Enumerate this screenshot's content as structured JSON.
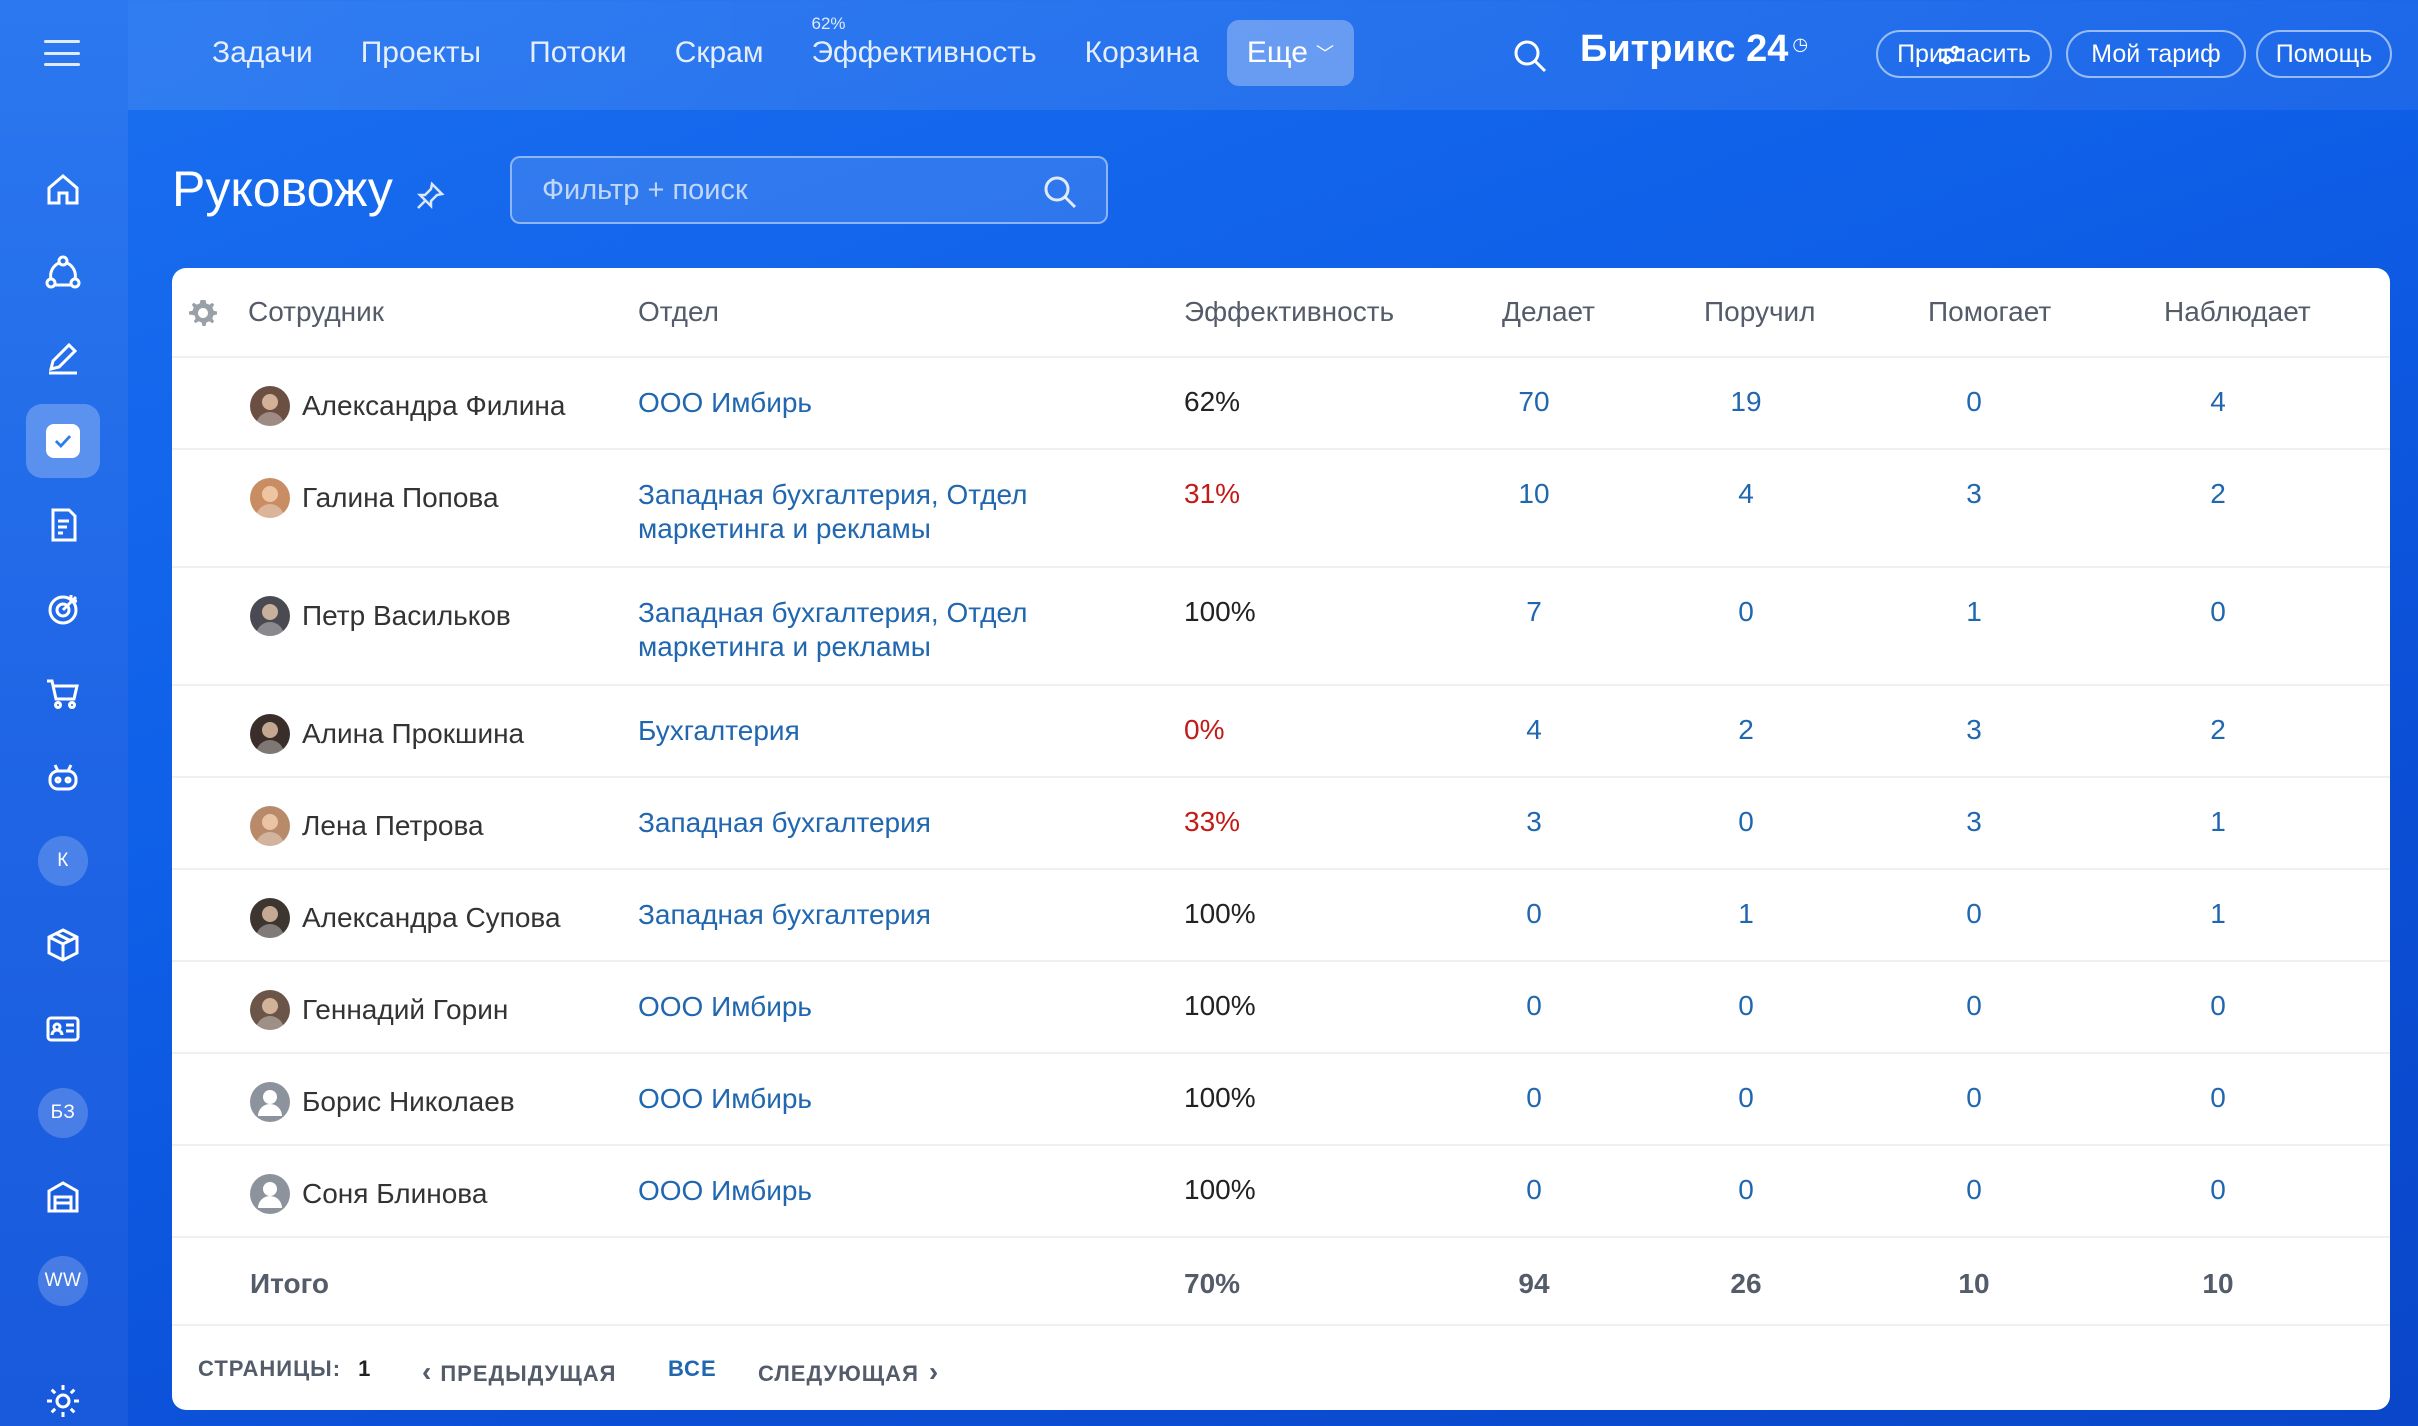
{
  "app": {
    "brand": "Битрикс 24"
  },
  "topnav": {
    "items": [
      {
        "label": "Задачи",
        "counter": ""
      },
      {
        "label": "Проекты",
        "counter": ""
      },
      {
        "label": "Потоки",
        "counter": ""
      },
      {
        "label": "Скрам",
        "counter": ""
      },
      {
        "label": "Эффективность",
        "counter": "62%"
      },
      {
        "label": "Корзина",
        "counter": ""
      }
    ],
    "more_label": "Еще",
    "invite_label": "Пригласить",
    "tariff_label": "Мой тариф",
    "help_label": "Помощь"
  },
  "sidebar": {
    "badges": {
      "k": "К",
      "kb": "БЗ",
      "ww": "WW"
    }
  },
  "page": {
    "title": "Руковожу",
    "filter_placeholder": "Фильтр + поиск"
  },
  "table": {
    "headers": {
      "employee": "Сотрудник",
      "department": "Отдел",
      "efficiency": "Эффективность",
      "doing": "Делает",
      "assigned": "Поручил",
      "helps": "Помогает",
      "watches": "Наблюдает"
    },
    "rows": [
      {
        "name": "Александра Филина",
        "dept": "ООО Имбирь",
        "eff": "62%",
        "doing": "70",
        "assigned": "19",
        "helps": "0",
        "watches": "4"
      },
      {
        "name": "Галина Попова",
        "dept": "Западная бухгалтерия, Отдел маркетинга и рекламы",
        "eff": "31%",
        "doing": "10",
        "assigned": "4",
        "helps": "3",
        "watches": "2"
      },
      {
        "name": "Петр Васильков",
        "dept": "Западная бухгалтерия, Отдел маркетинга и рекламы",
        "eff": "100%",
        "doing": "7",
        "assigned": "0",
        "helps": "1",
        "watches": "0"
      },
      {
        "name": "Алина Прокшина",
        "dept": "Бухгалтерия",
        "eff": "0%",
        "doing": "4",
        "assigned": "2",
        "helps": "3",
        "watches": "2"
      },
      {
        "name": "Лена Петрова",
        "dept": "Западная бухгалтерия",
        "eff": "33%",
        "doing": "3",
        "assigned": "0",
        "helps": "3",
        "watches": "1"
      },
      {
        "name": "Александра Супова",
        "dept": "Западная бухгалтерия",
        "eff": "100%",
        "doing": "0",
        "assigned": "1",
        "helps": "0",
        "watches": "1"
      },
      {
        "name": "Геннадий Горин",
        "dept": "ООО Имбирь",
        "eff": "100%",
        "doing": "0",
        "assigned": "0",
        "helps": "0",
        "watches": "0"
      },
      {
        "name": "Борис Николаев",
        "dept": "ООО Имбирь",
        "eff": "100%",
        "doing": "0",
        "assigned": "0",
        "helps": "0",
        "watches": "0"
      },
      {
        "name": "Соня Блинова",
        "dept": "ООО Имбирь",
        "eff": "100%",
        "doing": "0",
        "assigned": "0",
        "helps": "0",
        "watches": "0"
      }
    ],
    "total": {
      "label": "Итого",
      "eff": "70%",
      "doing": "94",
      "assigned": "26",
      "helps": "10",
      "watches": "10"
    }
  },
  "pager": {
    "pages_label": "СТРАНИЦЫ:",
    "current": "1",
    "prev_label": "ПРЕДЫДУЩАЯ",
    "all_label": "ВСЕ",
    "next_label": "СЛЕДУЮЩАЯ"
  },
  "colors": {
    "accent": "#2067b0",
    "low": "#c21b17",
    "bg": "#1560e8"
  }
}
